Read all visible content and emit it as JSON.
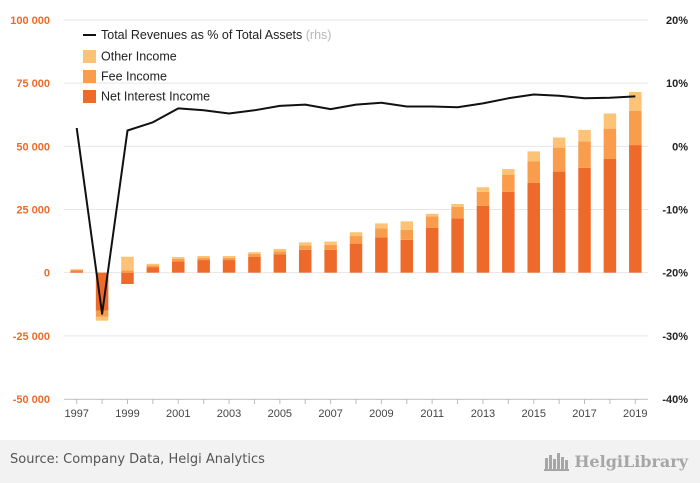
{
  "chart_data": {
    "type": "bar",
    "stacked": true,
    "categories": [
      "1997",
      "1998",
      "1999",
      "2000",
      "2001",
      "2002",
      "2003",
      "2004",
      "2005",
      "2006",
      "2007",
      "2008",
      "2009",
      "2010",
      "2011",
      "2012",
      "2013",
      "2014",
      "2015",
      "2016",
      "2017",
      "2018",
      "2019"
    ],
    "x_tick_labels": [
      "1997",
      "1999",
      "2001",
      "2003",
      "2005",
      "2007",
      "2009",
      "2011",
      "2013",
      "2015",
      "2017",
      "2019"
    ],
    "series": [
      {
        "name": "Net Interest Income",
        "color": "#ee6a2b",
        "values": [
          600,
          -15000,
          -4500,
          2200,
          4500,
          5000,
          5000,
          6200,
          7200,
          9000,
          9000,
          11500,
          14000,
          13000,
          17800,
          21500,
          26500,
          32000,
          35500,
          40000,
          41500,
          45000,
          50500
        ]
      },
      {
        "name": "Fee Income",
        "color": "#f99d4c",
        "values": [
          500,
          -2500,
          900,
          700,
          1000,
          800,
          900,
          1200,
          1300,
          1800,
          2000,
          3000,
          3500,
          4000,
          4500,
          4500,
          5500,
          6800,
          8500,
          9500,
          10500,
          12000,
          13500
        ]
      },
      {
        "name": "Other Income",
        "color": "#fcc276",
        "values": [
          300,
          -1500,
          5400,
          600,
          700,
          800,
          700,
          700,
          900,
          1200,
          1300,
          1500,
          2000,
          3300,
          1000,
          1200,
          1800,
          2200,
          4000,
          4000,
          4500,
          6000,
          7500
        ]
      }
    ],
    "line_series": {
      "name": "Total Revenues as % of Total Assets",
      "name_suffix": "(rhs)",
      "color": "#111111",
      "axis": "right",
      "values": [
        2.9,
        -26.5,
        2.5,
        3.8,
        6.0,
        5.7,
        5.2,
        5.7,
        6.4,
        6.6,
        5.9,
        6.6,
        6.9,
        6.3,
        6.3,
        6.2,
        6.8,
        7.6,
        8.2,
        8.0,
        7.6,
        7.7,
        7.9
      ]
    },
    "left_axis": {
      "min": -50000,
      "max": 100000,
      "ticks": [
        "100 000",
        "75 000",
        "50 000",
        "25 000",
        "0",
        "-25 000",
        "-50 000"
      ],
      "color": "#ee6a2b"
    },
    "right_axis": {
      "min": -40,
      "max": 20,
      "ticks": [
        "20%",
        "10%",
        "0%",
        "-10%",
        "-20%",
        "-30%",
        "-40%"
      ]
    },
    "grid": true,
    "legend": "top-left"
  },
  "footer": {
    "source": "Source: Company Data, Helgi Analytics",
    "brand": "HelgiLibrary"
  }
}
